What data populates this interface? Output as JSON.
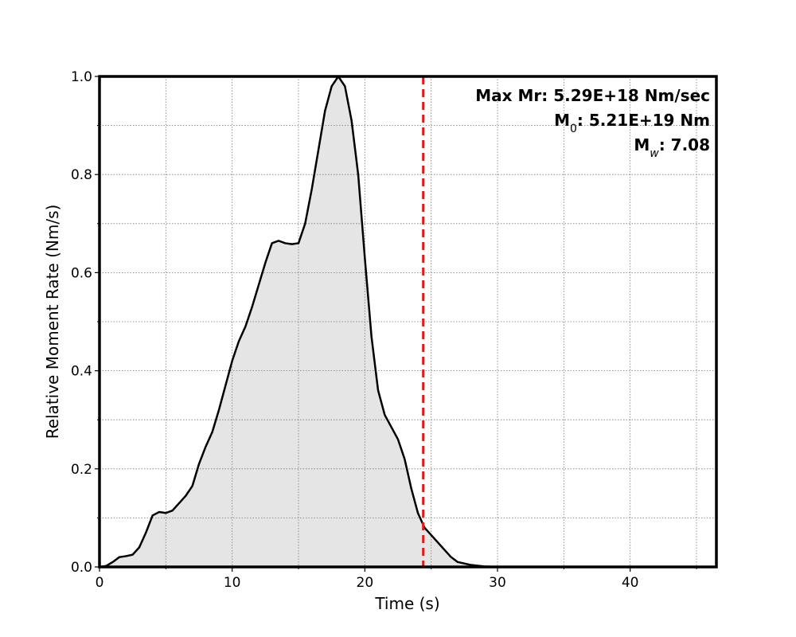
{
  "chart_data": {
    "type": "area",
    "xlabel": "Time (s)",
    "ylabel": "Relative Moment Rate (Nm/s)",
    "x": [
      0,
      0.5,
      1,
      1.5,
      2,
      2.5,
      3,
      3.5,
      4,
      4.5,
      5,
      5.5,
      6,
      6.5,
      7,
      7.5,
      8,
      8.5,
      9,
      9.5,
      10,
      10.5,
      11,
      11.5,
      12,
      12.5,
      13,
      13.5,
      14,
      14.5,
      15,
      15.5,
      16,
      16.5,
      17,
      17.5,
      18,
      18.5,
      19,
      19.5,
      20,
      20.5,
      21,
      21.5,
      22,
      22.5,
      23,
      23.5,
      24,
      24.5,
      25,
      25.5,
      26,
      26.5,
      27,
      28,
      29,
      30,
      35,
      40,
      46.5
    ],
    "values": [
      0,
      0.002,
      0.01,
      0.02,
      0.022,
      0.025,
      0.04,
      0.07,
      0.105,
      0.112,
      0.11,
      0.115,
      0.13,
      0.145,
      0.165,
      0.21,
      0.245,
      0.275,
      0.32,
      0.37,
      0.42,
      0.46,
      0.49,
      0.53,
      0.575,
      0.62,
      0.66,
      0.665,
      0.66,
      0.658,
      0.66,
      0.7,
      0.77,
      0.85,
      0.93,
      0.98,
      1.0,
      0.98,
      0.91,
      0.8,
      0.63,
      0.47,
      0.36,
      0.31,
      0.285,
      0.26,
      0.22,
      0.16,
      0.11,
      0.08,
      0.065,
      0.05,
      0.035,
      0.02,
      0.01,
      0.004,
      0.001,
      0,
      0,
      0,
      0
    ],
    "color": "#000000",
    "fill": "#e5e5e5",
    "xlim": [
      0,
      46.5
    ],
    "ylim": [
      0,
      1
    ],
    "xticks": [
      0,
      10,
      20,
      30,
      40
    ],
    "yticks": [
      {
        "value": 0,
        "label": "0.0"
      },
      {
        "value": 0.2,
        "label": "0.2"
      },
      {
        "value": 0.4,
        "label": "0.4"
      },
      {
        "value": 0.6,
        "label": "0.6"
      },
      {
        "value": 0.8,
        "label": "0.8"
      },
      {
        "value": 1,
        "label": "1.0"
      }
    ],
    "xminorticks": [
      5,
      15,
      25,
      35,
      45
    ],
    "yminorticks": [
      0.1,
      0.3,
      0.5,
      0.7,
      0.9
    ],
    "grid": true,
    "vline": {
      "x": 24.4,
      "color": "#e31a1c"
    },
    "annotations": [
      {
        "parts": [
          "Max Mr: 5.29E+18 Nm/sec"
        ]
      },
      {
        "parts": [
          "M",
          "0",
          ": 5.21E+19 Nm"
        ]
      },
      {
        "parts": [
          "M",
          "w",
          ": 7.08"
        ]
      }
    ]
  }
}
